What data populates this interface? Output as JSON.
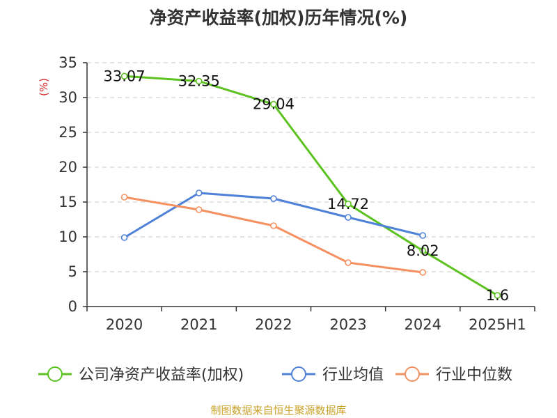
{
  "chart_data": {
    "type": "line",
    "title": "净资产收益率(加权)历年情况(%)",
    "ylabel": "(%)",
    "categories": [
      "2020",
      "2021",
      "2022",
      "2023",
      "2024",
      "2025H1"
    ],
    "ylim": [
      0,
      35
    ],
    "yticks": [
      0,
      5,
      10,
      15,
      20,
      25,
      30,
      35
    ],
    "grid": true,
    "legend_position": "bottom",
    "series": [
      {
        "name": "公司净资产收益率(加权)",
        "color": "#5bc21f",
        "values": [
          33.07,
          32.35,
          29.04,
          14.72,
          8.02,
          1.6
        ],
        "labels": [
          "33.07",
          "32.35",
          "29.04",
          "14.72",
          "8.02",
          "1.6"
        ]
      },
      {
        "name": "行业均值",
        "color": "#4f81d8",
        "values": [
          9.9,
          16.3,
          15.5,
          12.8,
          10.2,
          null
        ]
      },
      {
        "name": "行业中位数",
        "color": "#f59161",
        "values": [
          15.7,
          13.9,
          11.6,
          6.3,
          4.9,
          null
        ]
      }
    ]
  },
  "footer": "制图数据来自恒生聚源数据库"
}
